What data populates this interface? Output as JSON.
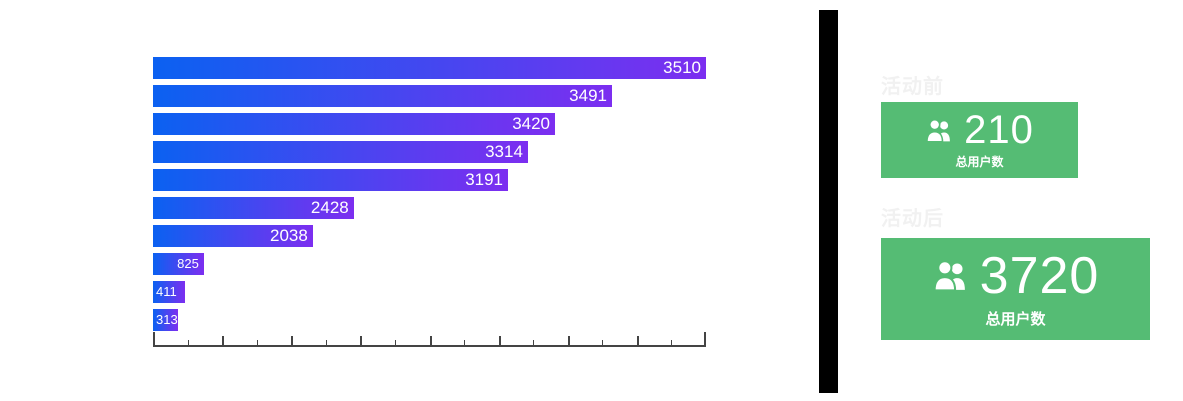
{
  "chart_data": {
    "type": "bar",
    "orientation": "horizontal",
    "bars": [
      {
        "value": 3510,
        "length_pct": 100,
        "label_align": "right",
        "label_size": "large"
      },
      {
        "value": 3491,
        "length_pct": 83,
        "label_align": "right",
        "label_size": "large"
      },
      {
        "value": 3420,
        "length_pct": 72.7,
        "label_align": "right",
        "label_size": "large"
      },
      {
        "value": 3314,
        "length_pct": 67.8,
        "label_align": "right",
        "label_size": "large"
      },
      {
        "value": 3191,
        "length_pct": 64.2,
        "label_align": "right",
        "label_size": "large"
      },
      {
        "value": 2428,
        "length_pct": 36.3,
        "label_align": "right",
        "label_size": "large"
      },
      {
        "value": 2038,
        "length_pct": 28.9,
        "label_align": "right",
        "label_size": "large"
      },
      {
        "value": 825,
        "length_pct": 9.2,
        "label_align": "right",
        "label_size": "small"
      },
      {
        "value": 411,
        "length_pct": 5.8,
        "label_align": "left",
        "label_size": "small"
      },
      {
        "value": 313,
        "length_pct": 4.5,
        "label_align": "left",
        "label_size": "small"
      }
    ],
    "bar_gradient_start": "#0b61f1",
    "bar_gradient_end": "#7c2ef0",
    "bar_label_color": "#ffffff",
    "axis": {
      "tick_count": 17,
      "color": "#444444",
      "tick_labels_visible": false
    }
  },
  "divider_color": "#000000",
  "panel": {
    "title_color": "#f1f1f1",
    "card_bg": "#55bc74",
    "card_text_color": "#ffffff",
    "before": {
      "title": "活动前",
      "value": "210",
      "caption": "总用户数"
    },
    "after": {
      "title": "活动后",
      "value": "3720",
      "caption": "总用户数"
    }
  }
}
